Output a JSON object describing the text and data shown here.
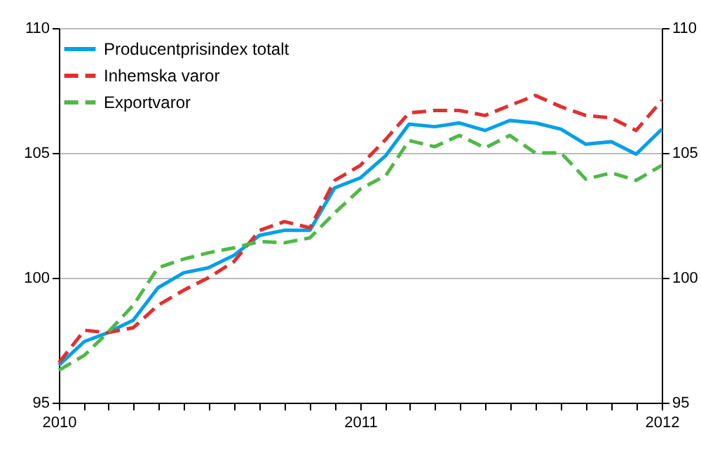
{
  "chart_data": {
    "type": "line",
    "x": [
      "2010-01",
      "2010-02",
      "2010-03",
      "2010-04",
      "2010-05",
      "2010-06",
      "2010-07",
      "2010-08",
      "2010-09",
      "2010-10",
      "2010-11",
      "2010-12",
      "2011-01",
      "2011-02",
      "2011-03",
      "2011-04",
      "2011-05",
      "2011-06",
      "2011-07",
      "2011-08",
      "2011-09",
      "2011-10",
      "2011-11",
      "2011-12",
      "2012-01"
    ],
    "series": [
      {
        "name": "Producentprisindex totalt",
        "color": "#00a0e6",
        "line_style": "solid",
        "values": [
          96.5,
          97.45,
          97.8,
          98.3,
          99.6,
          100.2,
          100.4,
          100.9,
          101.7,
          101.9,
          101.9,
          103.6,
          104.0,
          104.9,
          106.15,
          106.05,
          106.2,
          105.9,
          106.3,
          106.2,
          105.95,
          105.35,
          105.45,
          104.95,
          105.95
        ]
      },
      {
        "name": "Inhemska varor",
        "color": "#e03030",
        "line_style": "dashed",
        "values": [
          96.6,
          97.9,
          97.8,
          98.0,
          98.9,
          99.5,
          100.0,
          100.65,
          101.9,
          102.25,
          102.0,
          103.9,
          104.5,
          105.55,
          106.6,
          106.7,
          106.7,
          106.5,
          106.9,
          107.3,
          106.85,
          106.5,
          106.4,
          105.9,
          107.1
        ]
      },
      {
        "name": "Exportvaror",
        "color": "#50b848",
        "line_style": "dashed",
        "values": [
          96.3,
          96.9,
          97.8,
          98.9,
          100.4,
          100.75,
          101.0,
          101.2,
          101.45,
          101.4,
          101.6,
          102.6,
          103.55,
          104.1,
          105.5,
          105.25,
          105.7,
          105.2,
          105.7,
          105.0,
          105.0,
          103.95,
          104.2,
          103.9,
          104.5
        ]
      }
    ],
    "xlim": [
      "2010-01",
      "2012-01"
    ],
    "xticks": [
      {
        "value": "2010-01",
        "label": "2010"
      },
      {
        "value": "2010-02",
        "label": null
      },
      {
        "value": "2010-03",
        "label": null
      },
      {
        "value": "2010-04",
        "label": null
      },
      {
        "value": "2010-05",
        "label": null
      },
      {
        "value": "2010-06",
        "label": null
      },
      {
        "value": "2010-07",
        "label": null
      },
      {
        "value": "2010-08",
        "label": null
      },
      {
        "value": "2010-09",
        "label": null
      },
      {
        "value": "2010-10",
        "label": null
      },
      {
        "value": "2010-11",
        "label": null
      },
      {
        "value": "2010-12",
        "label": null
      },
      {
        "value": "2011-01",
        "label": "2011"
      },
      {
        "value": "2011-02",
        "label": null
      },
      {
        "value": "2011-03",
        "label": null
      },
      {
        "value": "2011-04",
        "label": null
      },
      {
        "value": "2011-05",
        "label": null
      },
      {
        "value": "2011-06",
        "label": null
      },
      {
        "value": "2011-07",
        "label": null
      },
      {
        "value": "2011-08",
        "label": null
      },
      {
        "value": "2011-09",
        "label": null
      },
      {
        "value": "2011-10",
        "label": null
      },
      {
        "value": "2011-11",
        "label": null
      },
      {
        "value": "2011-12",
        "label": null
      },
      {
        "value": "2012-01",
        "label": "2012"
      }
    ],
    "ylim": [
      95,
      110
    ],
    "yticks": [
      95,
      100,
      105,
      110
    ],
    "y2lim": [
      95,
      110
    ],
    "y2ticks": [
      95,
      100,
      105,
      110
    ],
    "grid": true,
    "legend": "top left",
    "marker": "none"
  }
}
